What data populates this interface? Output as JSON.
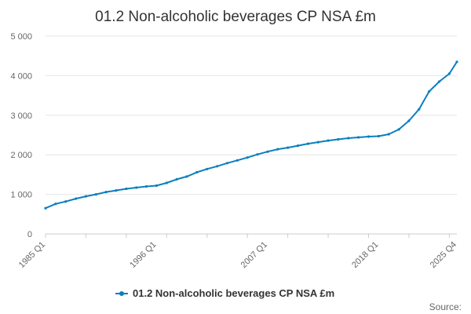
{
  "chart_data": {
    "type": "line",
    "title": "01.2 Non-alcoholic beverages CP NSA £m",
    "xlabel": "",
    "ylabel": "",
    "x_tick_labels": [
      "1985 Q1",
      "1996 Q1",
      "2007 Q1",
      "2018 Q1",
      "2025 Q4"
    ],
    "y_tick_labels": [
      "0",
      "1 000",
      "2 000",
      "3 000",
      "4 000",
      "5 000"
    ],
    "y_ticks": [
      0,
      1000,
      2000,
      3000,
      4000,
      5000
    ],
    "ylim": [
      0,
      5000
    ],
    "grid": true,
    "legend_position": "bottom",
    "series": [
      {
        "name": "01.2 Non-alcoholic beverages CP NSA £m",
        "color": "#0b7fbf",
        "x": [
          "1985 Q1",
          "1986 Q1",
          "1987 Q1",
          "1988 Q1",
          "1989 Q1",
          "1990 Q1",
          "1991 Q1",
          "1992 Q1",
          "1993 Q1",
          "1994 Q1",
          "1995 Q1",
          "1996 Q1",
          "1997 Q1",
          "1998 Q1",
          "1999 Q1",
          "2000 Q1",
          "2001 Q1",
          "2002 Q1",
          "2003 Q1",
          "2004 Q1",
          "2005 Q1",
          "2006 Q1",
          "2007 Q1",
          "2008 Q1",
          "2009 Q1",
          "2010 Q1",
          "2011 Q1",
          "2012 Q1",
          "2013 Q1",
          "2014 Q1",
          "2015 Q1",
          "2016 Q1",
          "2017 Q1",
          "2018 Q1",
          "2019 Q1",
          "2020 Q1",
          "2021 Q1",
          "2022 Q1",
          "2023 Q1",
          "2024 Q1",
          "2025 Q1",
          "2025 Q4"
        ],
        "values": [
          650,
          760,
          820,
          890,
          950,
          1000,
          1060,
          1100,
          1140,
          1170,
          1200,
          1220,
          1290,
          1380,
          1450,
          1560,
          1640,
          1710,
          1790,
          1860,
          1930,
          2010,
          2080,
          2140,
          2180,
          2230,
          2280,
          2320,
          2360,
          2390,
          2420,
          2440,
          2460,
          2470,
          2520,
          2640,
          2860,
          3150,
          3600,
          3850,
          4050,
          4350
        ]
      }
    ]
  },
  "legend": {
    "label": "01.2 Non-alcoholic beverages CP NSA £m"
  },
  "source_label": "Source:"
}
